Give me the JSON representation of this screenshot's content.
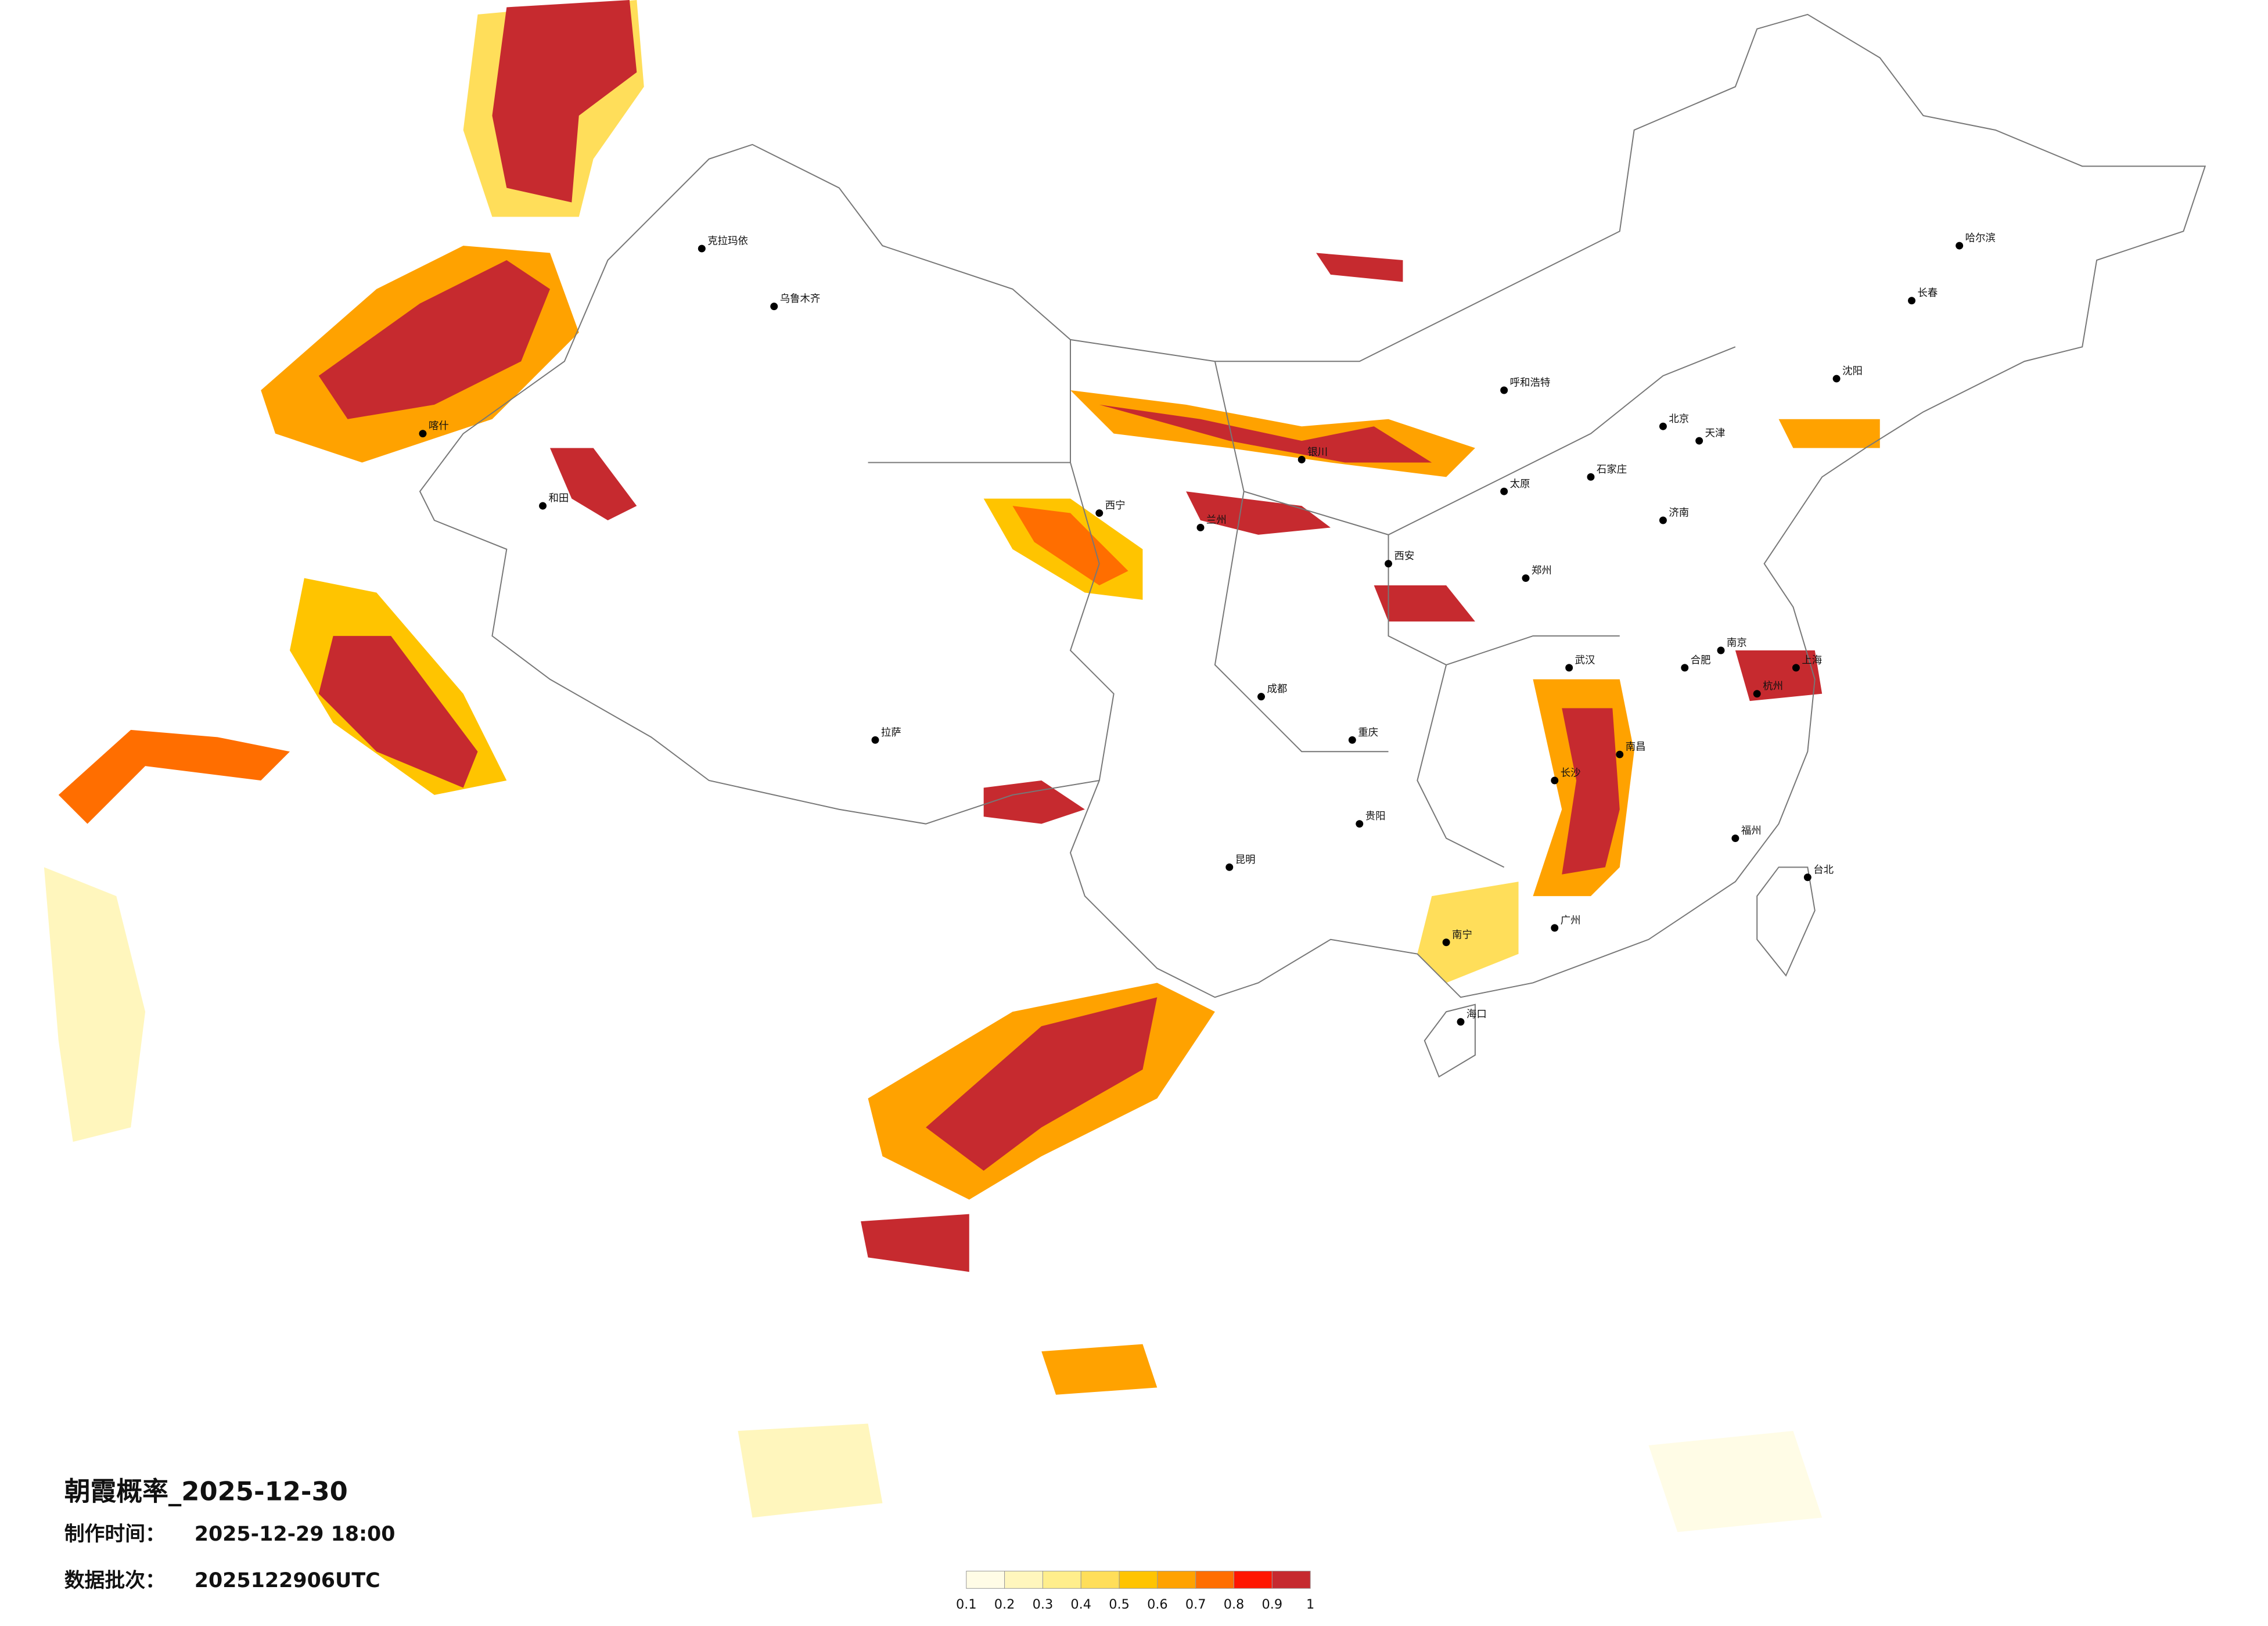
{
  "header": {
    "title": "朝霞概率_2025-12-30",
    "made_label": "制作时间：",
    "made_value": "2025-12-29 18:00",
    "batch_label": "数据批次：",
    "batch_value": "2025122906UTC"
  },
  "legend": {
    "ticks": [
      0.1,
      0.2,
      0.3,
      0.4,
      0.5,
      0.6,
      0.7,
      0.8,
      0.9,
      1
    ],
    "colors": [
      "#fffce6",
      "#fff6bd",
      "#ffee8c",
      "#ffde5a",
      "#ffc400",
      "#ffa200",
      "#ff6e00",
      "#ff1600",
      "#c62a2f"
    ]
  },
  "cities": [
    "北京",
    "天津",
    "石家庄",
    "太原",
    "呼和浩特",
    "沈阳",
    "长春",
    "哈尔滨",
    "济南",
    "郑州",
    "西安",
    "兰州",
    "西宁",
    "银川",
    "乌鲁木齐",
    "克拉玛依",
    "喀什",
    "和田",
    "拉萨",
    "成都",
    "重庆",
    "贵阳",
    "昆明",
    "南宁",
    "海口",
    "广州",
    "长沙",
    "武汉",
    "南昌",
    "合肥",
    "南京",
    "上海",
    "杭州",
    "福州",
    "台北"
  ]
}
